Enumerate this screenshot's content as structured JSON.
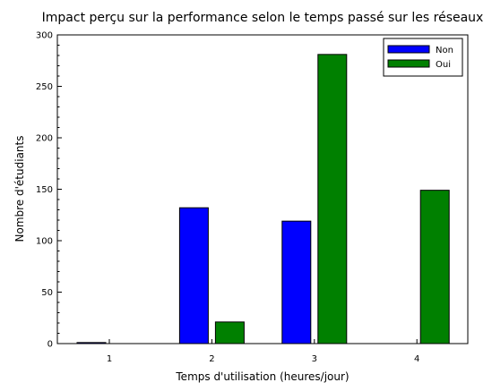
{
  "chart_data": {
    "type": "bar",
    "title": "Impact perçu sur la performance selon le temps passé sur les réseaux",
    "xlabel": "Temps d'utilisation (heures/jour)",
    "ylabel": "Nombre d'étudiants",
    "categories": [
      "1",
      "2",
      "3",
      "4"
    ],
    "series": [
      {
        "name": "Non",
        "color": "#0000ff",
        "values": [
          1,
          132,
          119,
          0
        ]
      },
      {
        "name": "Oui",
        "color": "#008000",
        "values": [
          0,
          21,
          281,
          149
        ]
      }
    ],
    "ylim": [
      0,
      300
    ],
    "yticks": [
      "0",
      "50",
      "100",
      "150",
      "200",
      "250",
      "300"
    ],
    "grid": false,
    "legend_position": "top-right"
  }
}
